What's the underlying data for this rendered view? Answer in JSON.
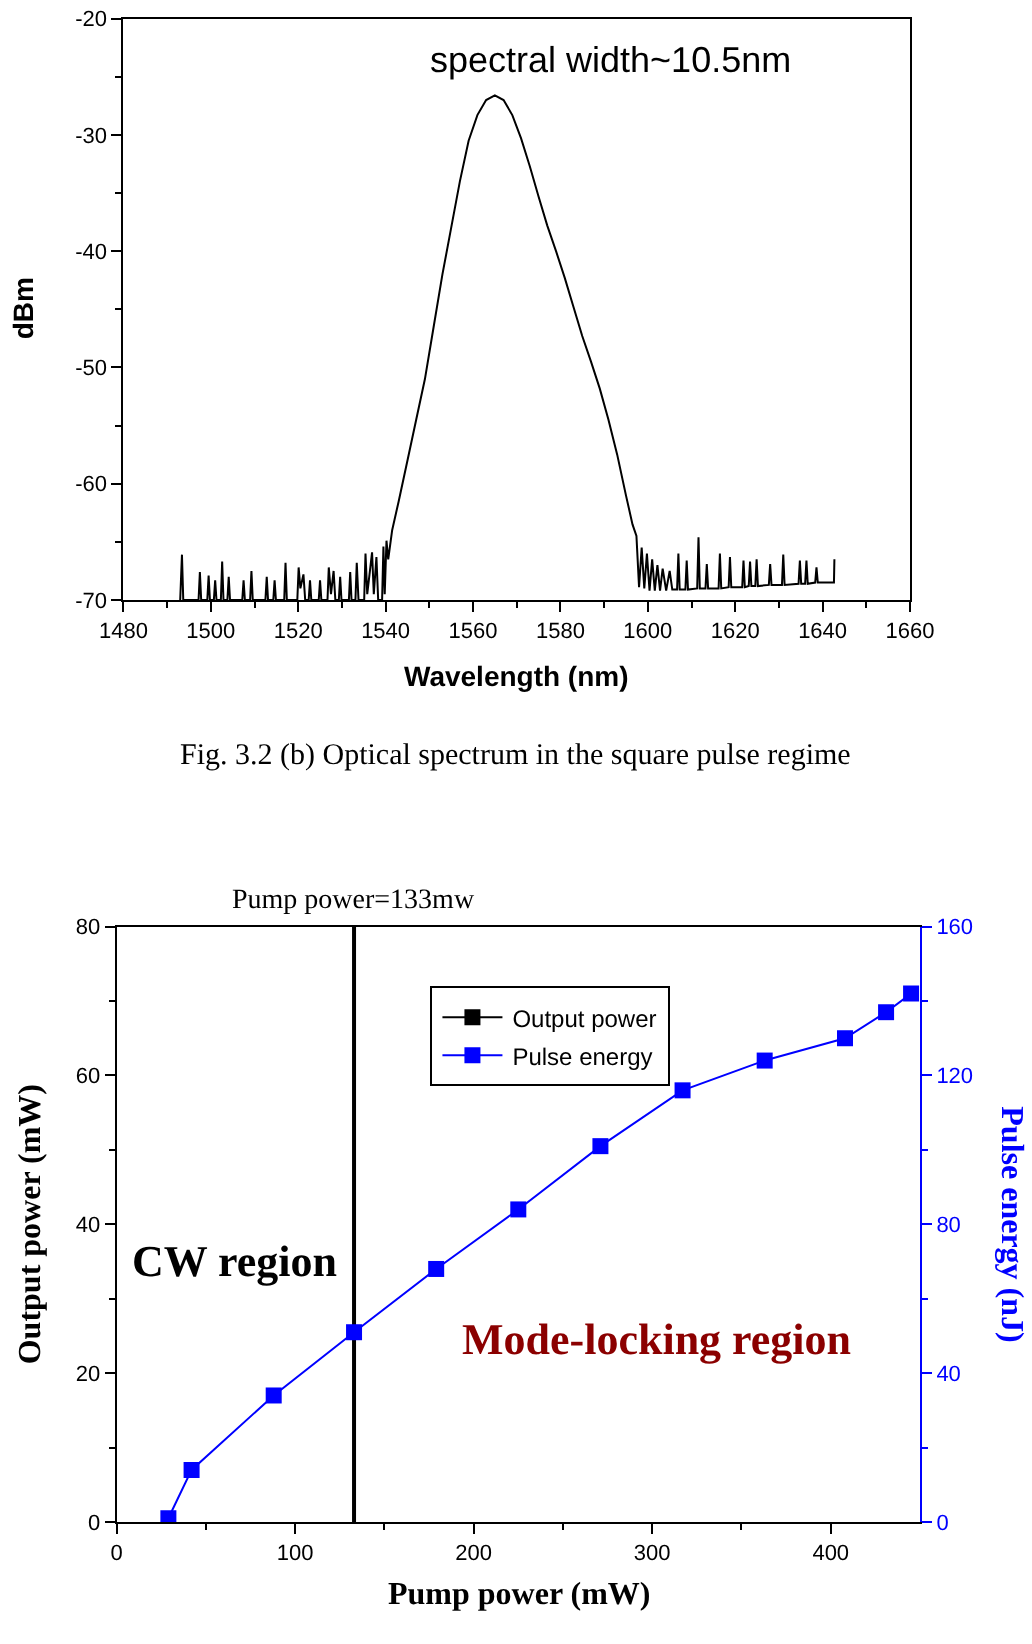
{
  "chart_data": [
    {
      "type": "line",
      "xlabel": "Wavelength (nm)",
      "ylabel": "dBm",
      "color": "#000000",
      "annotations": [
        "spectral width~10.5nm",
        "Fig. 3.2 (b) Optical spectrum in the square pulse regime"
      ],
      "xlim": [
        1480,
        1660
      ],
      "xticks": [
        1480,
        {
          "value": 1490,
          "label": null
        },
        1500,
        {
          "value": 1510,
          "label": null
        },
        1520,
        {
          "value": 1530,
          "label": null
        },
        1540,
        {
          "value": 1550,
          "label": null
        },
        1560,
        {
          "value": 1570,
          "label": null
        },
        1580,
        {
          "value": 1590,
          "label": null
        },
        1600,
        {
          "value": 1610,
          "label": null
        },
        1620,
        {
          "value": 1630,
          "label": null
        },
        1640,
        {
          "value": 1650,
          "label": null
        },
        1660
      ],
      "ylim": [
        -70,
        -20
      ],
      "yticks": [
        -70,
        {
          "value": -65,
          "label": null
        },
        -60,
        {
          "value": -55,
          "label": null
        },
        -50,
        {
          "value": -45,
          "label": null
        },
        -40,
        {
          "value": -35,
          "label": null
        },
        -30,
        {
          "value": -25,
          "label": null
        },
        -20
      ],
      "x": [
        1493.0,
        1493.4,
        1493.7,
        1497.2,
        1497.5,
        1497.8,
        1499.2,
        1499.5,
        1499.8,
        1500.7,
        1501.0,
        1501.3,
        1502.3,
        1502.6,
        1502.9,
        1503.8,
        1504.1,
        1504.4,
        1507.2,
        1507.5,
        1507.8,
        1509.0,
        1509.3,
        1509.6,
        1512.5,
        1512.8,
        1513.1,
        1514.3,
        1514.6,
        1514.9,
        1516.8,
        1517.1,
        1517.4,
        1519.8,
        1520.1,
        1520.5,
        1521.2,
        1521.6,
        1522.4,
        1522.7,
        1523.0,
        1524.7,
        1525.0,
        1525.3,
        1526.7,
        1527.0,
        1527.5,
        1528.1,
        1528.5,
        1529.3,
        1529.6,
        1529.9,
        1531.6,
        1531.9,
        1532.2,
        1533.1,
        1533.4,
        1533.8,
        1535.1,
        1535.4,
        1535.8,
        1536.9,
        1537.3,
        1537.9,
        1538.3,
        1539.2,
        1539.5,
        1539.8,
        1540.2,
        1540.6,
        1541.5,
        1543.0,
        1545.0,
        1547.0,
        1549.0,
        1551.0,
        1553.0,
        1555.0,
        1557.0,
        1559.0,
        1561.0,
        1563.0,
        1565.0,
        1567.0,
        1569.0,
        1571.0,
        1573.0,
        1575.0,
        1577.0,
        1579.0,
        1581.0,
        1583.0,
        1585.0,
        1587.0,
        1589.0,
        1591.0,
        1593.0,
        1595.0,
        1596.5,
        1597.4,
        1598.0,
        1598.6,
        1599.2,
        1599.8,
        1600.4,
        1601.0,
        1601.6,
        1602.2,
        1602.8,
        1603.4,
        1604.2,
        1605.0,
        1605.6,
        1606.7,
        1607.0,
        1607.3,
        1608.6,
        1608.9,
        1609.2,
        1611.3,
        1611.6,
        1611.9,
        1613.2,
        1613.5,
        1613.8,
        1616.2,
        1616.5,
        1616.8,
        1618.5,
        1618.8,
        1619.1,
        1621.6,
        1621.9,
        1622.2,
        1623.1,
        1623.4,
        1623.7,
        1624.6,
        1624.9,
        1625.2,
        1627.7,
        1628.0,
        1628.3,
        1630.7,
        1631.0,
        1631.3,
        1634.5,
        1634.8,
        1635.1,
        1636.0,
        1636.3,
        1636.6,
        1638.3,
        1638.6,
        1638.9,
        1642.6,
        1642.7
      ],
      "values": [
        -70,
        -66.1,
        -70,
        -70,
        -67.6,
        -70,
        -70,
        -67.9,
        -70,
        -70,
        -68.3,
        -70,
        -70,
        -66.7,
        -70,
        -70,
        -68.0,
        -70,
        -70,
        -68.3,
        -70,
        -70,
        -67.5,
        -70,
        -70,
        -68.0,
        -70,
        -70,
        -68.3,
        -70,
        -70,
        -66.8,
        -70,
        -70,
        -67.2,
        -69.0,
        -67.8,
        -70,
        -70,
        -68.3,
        -70,
        -70,
        -68.3,
        -70,
        -70,
        -67.2,
        -69.5,
        -67.5,
        -70,
        -70,
        -68.0,
        -70,
        -70,
        -67.6,
        -70,
        -70,
        -66.8,
        -70,
        -70,
        -66.0,
        -69.5,
        -65.9,
        -69.5,
        -66.3,
        -70,
        -70,
        -65.4,
        -69.5,
        -64.9,
        -66.5,
        -64.0,
        -61.5,
        -58.0,
        -54.5,
        -51.0,
        -46.5,
        -42.0,
        -38.0,
        -34.0,
        -30.5,
        -28.3,
        -27.0,
        -26.6,
        -27.0,
        -28.3,
        -30.3,
        -32.7,
        -35.3,
        -37.8,
        -40.0,
        -42.3,
        -44.8,
        -47.3,
        -49.5,
        -51.8,
        -54.5,
        -57.5,
        -61.0,
        -63.5,
        -64.5,
        -68.9,
        -65.5,
        -69.0,
        -66.0,
        -69.2,
        -66.5,
        -69.2,
        -67.0,
        -69.2,
        -67.3,
        -69.2,
        -67.5,
        -69.1,
        -69.1,
        -66.0,
        -69.1,
        -69.1,
        -66.6,
        -69.1,
        -69.0,
        -64.6,
        -69.0,
        -69.0,
        -66.9,
        -69.0,
        -69.0,
        -66.0,
        -69.0,
        -68.9,
        -66.3,
        -68.9,
        -68.9,
        -66.6,
        -68.9,
        -68.8,
        -66.7,
        -68.8,
        -68.8,
        -66.5,
        -68.8,
        -68.7,
        -66.9,
        -68.7,
        -68.7,
        -66.1,
        -68.7,
        -68.6,
        -66.6,
        -68.6,
        -68.6,
        -66.6,
        -68.6,
        -68.5,
        -67.2,
        -68.5,
        -68.5,
        -66.5
      ]
    },
    {
      "type": "line",
      "xlabel": "Pump power (mW)",
      "ylabel": "Output power (mW)",
      "y2label": "Pulse energy (nJ)",
      "x": [
        29,
        42,
        88,
        133,
        179,
        225,
        271,
        317,
        363,
        408,
        431,
        445
      ],
      "series": [
        {
          "name": "Output power",
          "color": "#000000",
          "values": [
            null,
            null,
            null,
            null,
            null,
            null,
            null,
            null,
            null,
            null,
            null,
            null
          ]
        },
        {
          "name": "Pulse energy",
          "color": "#0000ff",
          "axis": "y2",
          "values": [
            1,
            14,
            34,
            51,
            68,
            84,
            101,
            116,
            124,
            130,
            137,
            142
          ]
        }
      ],
      "marker": "square",
      "legend": "top",
      "ref_lines": [
        {
          "axis": "x",
          "value": 133,
          "label": "Pump power=133mw",
          "color": "#000000"
        }
      ],
      "annotations": [
        "CW region",
        "Mode-locking region"
      ],
      "xlim": [
        0,
        450
      ],
      "xticks": [
        0,
        {
          "value": 50,
          "label": null
        },
        100,
        {
          "value": 150,
          "label": null
        },
        200,
        {
          "value": 250,
          "label": null
        },
        300,
        {
          "value": 350,
          "label": null
        },
        400
      ],
      "ylim": [
        0,
        80
      ],
      "yticks": [
        0,
        {
          "value": 10,
          "label": null
        },
        20,
        {
          "value": 30,
          "label": null
        },
        40,
        {
          "value": 50,
          "label": null
        },
        60,
        {
          "value": 70,
          "label": null
        },
        80
      ],
      "y2lim": [
        0,
        160
      ],
      "y2ticks": [
        0,
        {
          "value": 20,
          "label": null
        },
        40,
        {
          "value": 60,
          "label": null
        },
        80,
        {
          "value": 100,
          "label": null
        },
        120,
        {
          "value": 140,
          "label": null
        },
        160
      ]
    }
  ]
}
